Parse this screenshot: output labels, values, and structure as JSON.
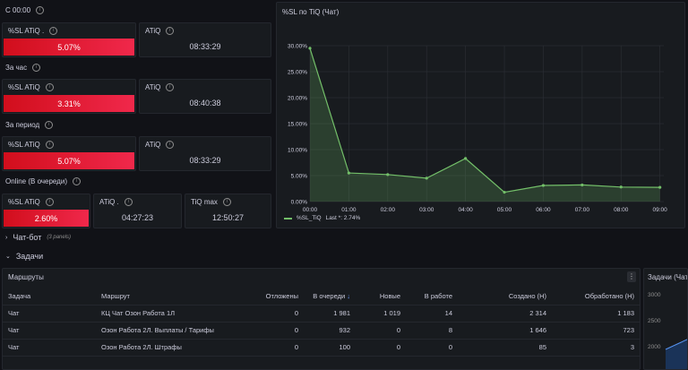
{
  "sections": {
    "since_midnight": "С 00:00",
    "per_hour": "За час",
    "per_period": "За период",
    "online": "Online (В очереди)"
  },
  "stats": {
    "since_midnight": {
      "sl_title": "%SL ATiQ .",
      "sl_value": "5.07%",
      "atiq_title": "ATiQ",
      "atiq_value": "08:33:29"
    },
    "per_hour": {
      "sl_title": "%SL ATiQ",
      "sl_value": "3.31%",
      "atiq_title": "ATiQ",
      "atiq_value": "08:40:38"
    },
    "per_period": {
      "sl_title": "%SL ATiQ",
      "sl_value": "5.07%",
      "atiq_title": "ATiQ",
      "atiq_value": "08:33:29"
    },
    "online": {
      "sl_title": "%SL ATiQ",
      "sl_value": "2.60%",
      "atiq_title": "ATiQ .",
      "atiq_value": "04:27:23",
      "max_title": "TiQ max",
      "max_value": "12:50:27"
    }
  },
  "rows": {
    "chatbot": {
      "label": "Чат-бот",
      "sub": "(3 panels)",
      "chevron": ">"
    },
    "tasks": {
      "label": "Задачи",
      "chevron": "v"
    }
  },
  "chart": {
    "title": "%SL по TiQ (Чат)",
    "legend_label": "%SL_TiQ",
    "legend_last": "Last *: 2.74%",
    "accent": "#73bf69"
  },
  "chart_data": {
    "type": "area",
    "x": [
      "00:00",
      "01:00",
      "02:00",
      "03:00",
      "04:00",
      "05:00",
      "06:00",
      "07:00",
      "08:00",
      "09:00"
    ],
    "x_values": [
      0,
      1,
      2,
      3,
      4,
      5,
      6,
      7,
      8,
      9
    ],
    "series": [
      {
        "name": "%SL_TiQ",
        "points": [
          [
            0,
            29.5
          ],
          [
            1,
            5.5
          ],
          [
            2,
            5.2
          ],
          [
            3,
            4.5
          ],
          [
            4,
            8.3
          ],
          [
            5,
            1.8
          ],
          [
            6,
            3.1
          ],
          [
            7,
            3.2
          ],
          [
            8,
            2.8
          ],
          [
            9,
            2.74
          ]
        ]
      }
    ],
    "y_ticks": [
      "0.00%",
      "5.00%",
      "10.00%",
      "15.00%",
      "20.00%",
      "25.00%",
      "30.00%"
    ],
    "ylim": [
      0,
      30
    ],
    "xlim": [
      0,
      9.1
    ]
  },
  "table": {
    "title": "Маршруты",
    "menu": "⋮",
    "columns": [
      "Задача",
      "Маршрут",
      "Отложены",
      "В очереди",
      "Новые",
      "В работе",
      "Создано (Н)",
      "Обработано (Н)"
    ],
    "sort_arrow": "↓",
    "rows": [
      [
        "Чат",
        "КЦ Чат Озон Работа 1Л",
        "0",
        "1 981",
        "1 019",
        "14",
        "2 314",
        "1 183"
      ],
      [
        "Чат",
        "Озон Работа 2Л. Выплаты / Тарифы",
        "0",
        "932",
        "0",
        "8",
        "1 646",
        "723"
      ],
      [
        "Чат",
        "Озон Работа 2Л. Штрафы",
        "0",
        "100",
        "0",
        "0",
        "85",
        "3"
      ]
    ]
  },
  "right_panel": {
    "title": "Задачи (Чат",
    "y_ticks": [
      "3000",
      "2500",
      "2000"
    ]
  }
}
